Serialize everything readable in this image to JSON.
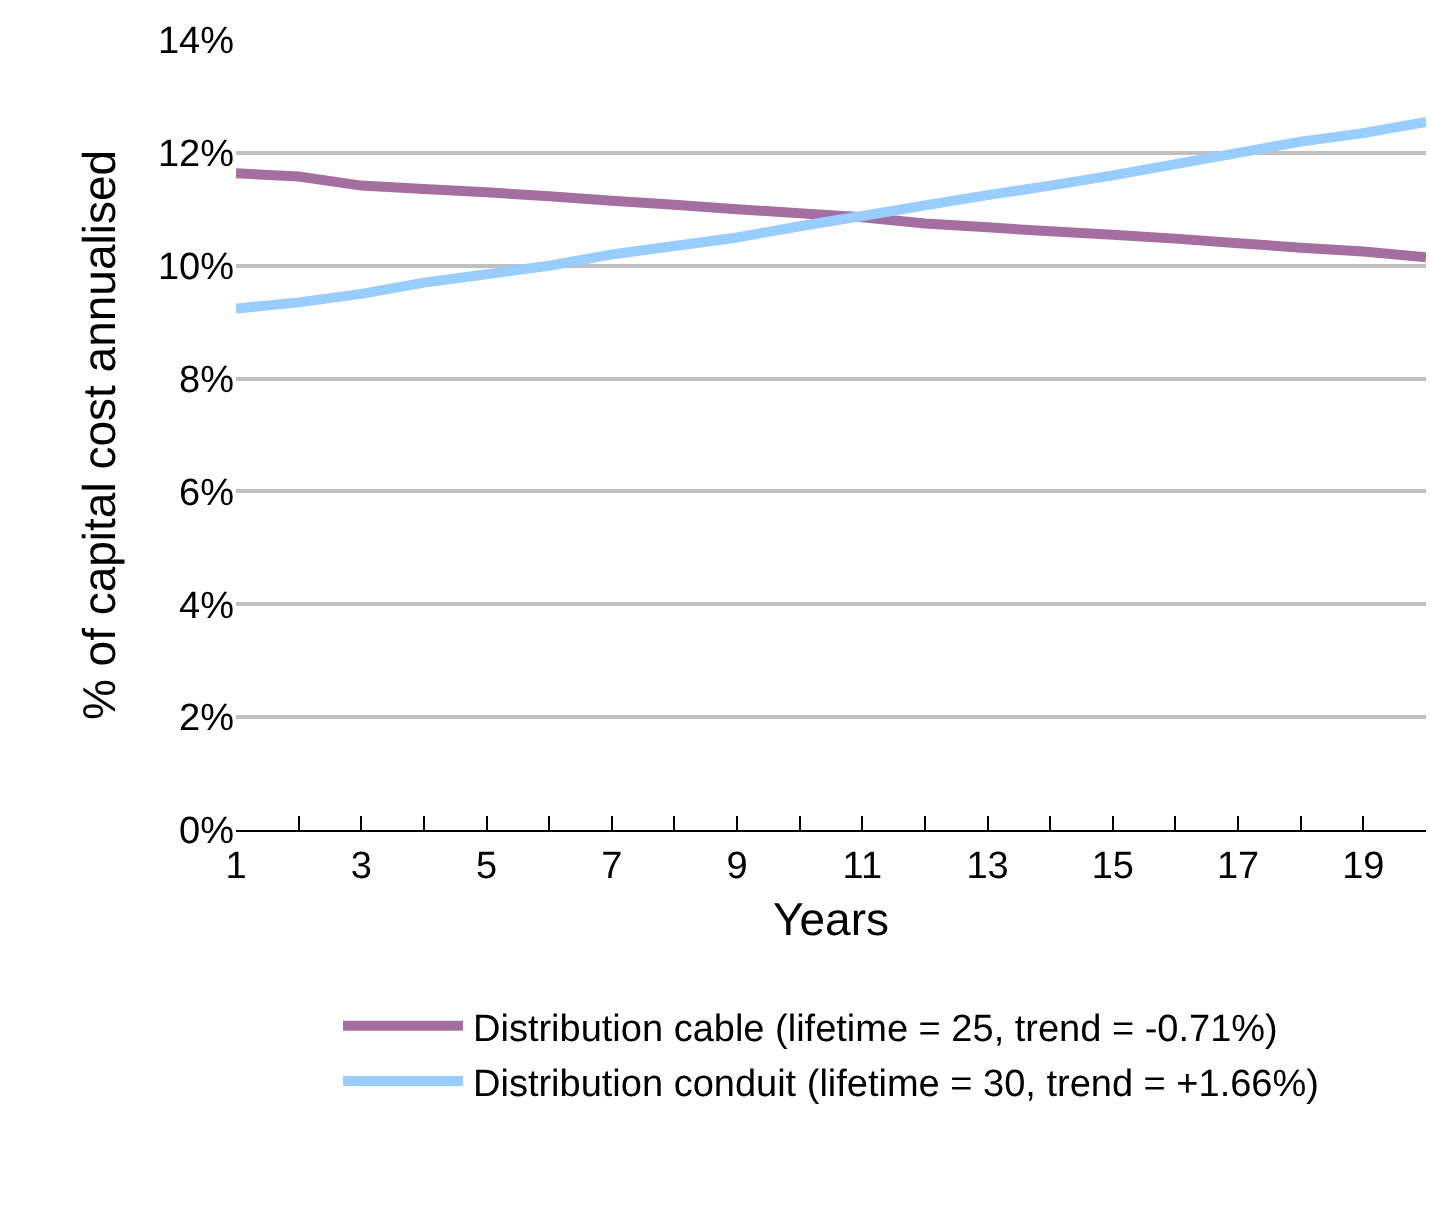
{
  "chart_data": {
    "type": "line",
    "xlabel": "Years",
    "ylabel": "% of capital cost annualised",
    "x": [
      1,
      2,
      3,
      4,
      5,
      6,
      7,
      8,
      9,
      10,
      11,
      12,
      13,
      14,
      15,
      16,
      17,
      18,
      19,
      20
    ],
    "series": [
      {
        "name": "Distribution cable (lifetime = 25, trend = -0.71%)",
        "color": "#a56ea0",
        "values": [
          11.64,
          11.58,
          11.42,
          11.36,
          11.3,
          11.23,
          11.15,
          11.08,
          11.0,
          10.93,
          10.86,
          10.75,
          10.68,
          10.61,
          10.55,
          10.48,
          10.4,
          10.32,
          10.25,
          10.15
        ]
      },
      {
        "name": "Distribution conduit (lifetime = 30, trend = +1.66%)",
        "color": "#99ccff",
        "values": [
          9.24,
          9.35,
          9.5,
          9.7,
          9.85,
          10.0,
          10.2,
          10.35,
          10.5,
          10.7,
          10.88,
          11.07,
          11.25,
          11.42,
          11.6,
          11.8,
          12.0,
          12.2,
          12.35,
          12.55
        ]
      }
    ],
    "xlim": [
      1,
      20
    ],
    "xticks": [
      1,
      {
        "value": 2,
        "label": null
      },
      3,
      {
        "value": 4,
        "label": null
      },
      5,
      {
        "value": 6,
        "label": null
      },
      7,
      {
        "value": 8,
        "label": null
      },
      9,
      {
        "value": 10,
        "label": null
      },
      11,
      {
        "value": 12,
        "label": null
      },
      13,
      {
        "value": 14,
        "label": null
      },
      15,
      {
        "value": 16,
        "label": null
      },
      17,
      {
        "value": 18,
        "label": null
      },
      19,
      {
        "value": 20,
        "label": null
      }
    ],
    "ylim": [
      0,
      14
    ],
    "yticks": [
      {
        "value": 0,
        "label": "0%"
      },
      {
        "value": 2,
        "label": "2%"
      },
      {
        "value": 4,
        "label": "4%"
      },
      {
        "value": 6,
        "label": "6%"
      },
      {
        "value": 8,
        "label": "8%"
      },
      {
        "value": 10,
        "label": "10%"
      },
      {
        "value": 12,
        "label": "12%"
      },
      {
        "value": 14,
        "label": "14%"
      }
    ],
    "grid": "y",
    "legend": "bottom",
    "marker": "none",
    "line_style": "solid"
  }
}
